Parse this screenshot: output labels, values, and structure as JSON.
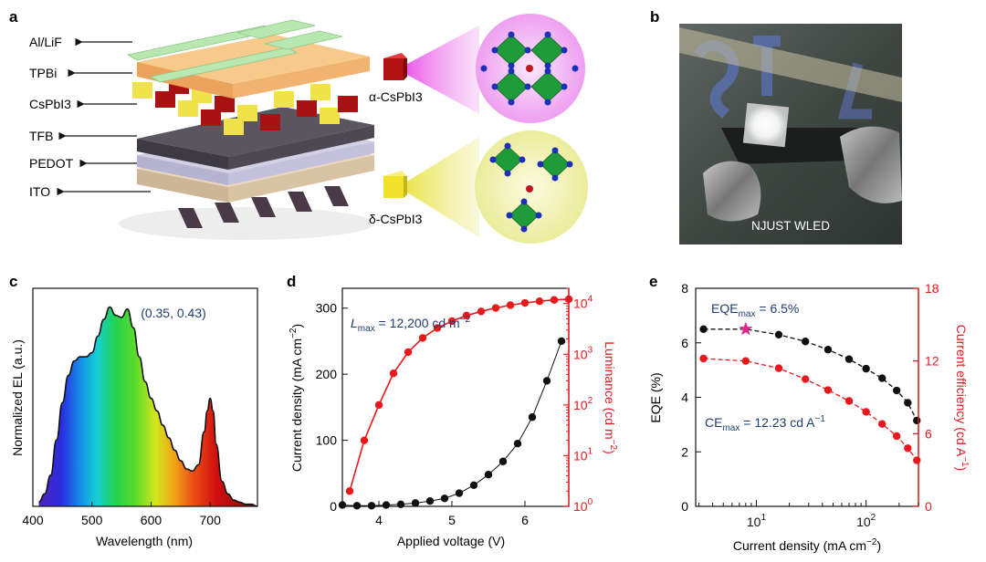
{
  "panels": {
    "a": {
      "label": "a",
      "layers": [
        "Al/LiF",
        "TPBi",
        "CsPbI3",
        "TFB",
        "PEDOT",
        "ITO"
      ],
      "alpha_label": "α-CsPbI3",
      "delta_label": "δ-CsPbI3"
    },
    "b": {
      "label": "b",
      "photo_caption": "NJUST WLED"
    },
    "c": {
      "label": "c",
      "coord_label": "(0.35, 0.43)",
      "ylabel": "Normalized EL (a.u.)",
      "xlabel": "Wavelength (nm)",
      "x_ticks": [
        "400",
        "500",
        "600",
        "700"
      ]
    },
    "d": {
      "label": "d",
      "annotation": "L_max = 12,200 cd m−2",
      "ylabel_left": "Current density (mA cm−2)",
      "ylabel_right": "Luminance (cd m−2)",
      "xlabel": "Applied voltage (V)",
      "x_ticks": [
        "4",
        "5",
        "6"
      ],
      "y_ticks_left": [
        "0",
        "100",
        "200",
        "300"
      ],
      "y_ticks_right": [
        "10^0",
        "10^1",
        "10^2",
        "10^3",
        "10^4"
      ]
    },
    "e": {
      "label": "e",
      "annotation_eqe": "EQE_max = 6.5%",
      "annotation_ce": "CE_max = 12.23 cd A−1",
      "ylabel_left": "EQE (%)",
      "ylabel_right": "Current efficiency (cd A−1)",
      "xlabel": "Current density (mA cm−2)",
      "x_ticks": [
        "10^1",
        "10^2"
      ],
      "y_ticks_left": [
        "0",
        "2",
        "4",
        "6",
        "8"
      ],
      "y_ticks_right": [
        "0",
        "6",
        "12",
        "18"
      ]
    }
  },
  "colors": {
    "black_series": "#111111",
    "red_series": "#e8191c",
    "annotation": "#1f3c73",
    "star": "#e0268c"
  },
  "chart_data": [
    {
      "panel": "c",
      "type": "area",
      "xlabel": "Wavelength (nm)",
      "ylabel": "Normalized EL (a.u.)",
      "xlim": [
        400,
        780
      ],
      "ylim": [
        0,
        1.05
      ],
      "x": [
        410,
        420,
        430,
        440,
        450,
        460,
        470,
        480,
        490,
        500,
        510,
        520,
        530,
        540,
        550,
        560,
        570,
        580,
        590,
        600,
        610,
        620,
        630,
        640,
        650,
        660,
        670,
        680,
        690,
        695,
        700,
        705,
        710,
        720,
        730,
        740,
        750,
        760,
        770,
        780
      ],
      "y": [
        0.02,
        0.06,
        0.15,
        0.32,
        0.5,
        0.63,
        0.7,
        0.72,
        0.72,
        0.74,
        0.82,
        0.9,
        0.96,
        0.92,
        0.91,
        0.95,
        0.86,
        0.72,
        0.6,
        0.52,
        0.46,
        0.39,
        0.33,
        0.27,
        0.22,
        0.18,
        0.17,
        0.2,
        0.36,
        0.46,
        0.52,
        0.46,
        0.3,
        0.12,
        0.06,
        0.03,
        0.02,
        0.01,
        0.01,
        0.0
      ]
    },
    {
      "panel": "d",
      "type": "scatter",
      "xlabel": "Applied voltage (V)",
      "xlim": [
        3.5,
        6.6
      ],
      "series": [
        {
          "axis": "left",
          "ylim": [
            0,
            330
          ],
          "x": [
            3.5,
            3.7,
            3.9,
            4.1,
            4.3,
            4.5,
            4.7,
            4.9,
            5.1,
            5.3,
            5.5,
            5.7,
            5.9,
            6.1,
            6.3,
            6.5
          ],
          "y": [
            2,
            1,
            1,
            2,
            3,
            5,
            8,
            12,
            20,
            32,
            48,
            68,
            95,
            135,
            190,
            250
          ]
        },
        {
          "axis": "right",
          "scale": "log",
          "ylim": [
            1,
            20000
          ],
          "x": [
            3.6,
            3.8,
            4.0,
            4.2,
            4.4,
            4.6,
            4.8,
            5.0,
            5.2,
            5.4,
            5.6,
            5.8,
            6.0,
            6.2,
            6.4,
            6.6
          ],
          "y": [
            2,
            20,
            100,
            420,
            1100,
            2100,
            3300,
            4500,
            5800,
            7000,
            8200,
            9300,
            10300,
            11100,
            11800,
            12200
          ]
        }
      ]
    },
    {
      "panel": "e",
      "type": "scatter",
      "xlabel": "Current density (mA cm−2)",
      "xscale": "log",
      "xlim": [
        2.8,
        300
      ],
      "series": [
        {
          "axis": "left",
          "ylim": [
            0,
            8
          ],
          "x": [
            3.3,
            8,
            16,
            28,
            45,
            70,
            100,
            140,
            190,
            240,
            290
          ],
          "y": [
            6.5,
            6.5,
            6.3,
            6.05,
            5.75,
            5.4,
            5.05,
            4.7,
            4.25,
            3.8,
            3.15
          ]
        },
        {
          "axis": "right",
          "ylim": [
            0,
            18
          ],
          "x": [
            3.3,
            8,
            16,
            28,
            45,
            70,
            100,
            140,
            190,
            240,
            290
          ],
          "y": [
            12.2,
            12.0,
            11.4,
            10.5,
            9.6,
            8.7,
            7.8,
            6.8,
            5.8,
            4.8,
            3.8
          ]
        }
      ]
    }
  ]
}
